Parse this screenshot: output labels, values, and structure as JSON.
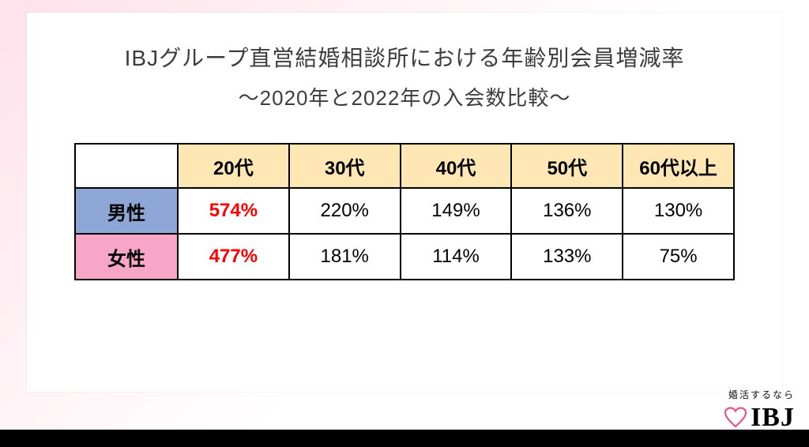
{
  "title": {
    "line1": "IBJグループ直営結婚相談所における年齢別会員増減率",
    "line2": "～2020年と2022年の入会数比較～"
  },
  "table": {
    "columns": [
      "20代",
      "30代",
      "40代",
      "50代",
      "60代以上"
    ],
    "header_bg": "#ffe7b5",
    "corner_bg": "#ffffff",
    "rows": [
      {
        "label": "男性",
        "label_bg": "#8ea6d6",
        "cells": [
          {
            "value": "574%",
            "color": "#ff0000",
            "bold": true
          },
          {
            "value": "220%",
            "color": "#000000",
            "bold": false
          },
          {
            "value": "149%",
            "color": "#000000",
            "bold": false
          },
          {
            "value": "136%",
            "color": "#000000",
            "bold": false
          },
          {
            "value": "130%",
            "color": "#000000",
            "bold": false
          }
        ]
      },
      {
        "label": "女性",
        "label_bg": "#f7a6c7",
        "cells": [
          {
            "value": "477%",
            "color": "#ff0000",
            "bold": true
          },
          {
            "value": "181%",
            "color": "#000000",
            "bold": false
          },
          {
            "value": "114%",
            "color": "#000000",
            "bold": false
          },
          {
            "value": "133%",
            "color": "#000000",
            "bold": false
          },
          {
            "value": "75%",
            "color": "#000000",
            "bold": false
          }
        ]
      }
    ],
    "col_widths": [
      "130px",
      "auto",
      "auto",
      "auto",
      "auto",
      "auto"
    ]
  },
  "logo": {
    "tagline": "婚活するなら",
    "text": "IBJ",
    "heart_stroke": "#e6558b",
    "heart_fill": "none"
  }
}
